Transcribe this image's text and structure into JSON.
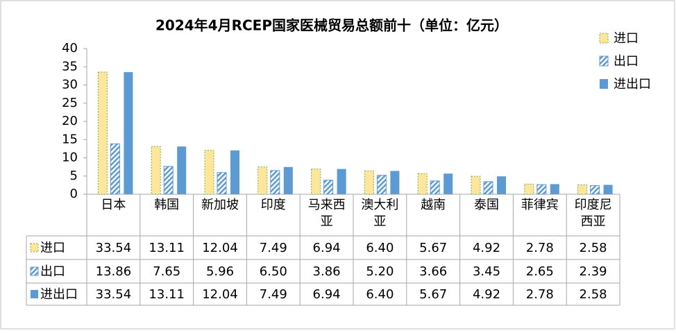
{
  "chart_data": {
    "type": "bar",
    "title": "2024年4月RCEP国家医械贸易总额前十（单位：亿元）",
    "categories": [
      "日本",
      "韩国",
      "新加坡",
      "印度",
      "马来西亚",
      "澳大利亚",
      "越南",
      "泰国",
      "菲律宾",
      "印度尼西亚"
    ],
    "series": [
      {
        "name": "进口",
        "color": "#ffe699",
        "values": [
          33.54,
          13.11,
          12.04,
          7.49,
          6.94,
          6.4,
          5.67,
          4.92,
          2.78,
          2.58
        ],
        "value_labels": [
          "33.54",
          "13.11",
          "12.04",
          "7.49",
          "6.94",
          "6.40",
          "5.67",
          "4.92",
          "2.78",
          "2.58"
        ]
      },
      {
        "name": "出口",
        "color": "#5b9bd5",
        "values": [
          13.86,
          7.65,
          5.96,
          6.5,
          3.86,
          5.2,
          3.66,
          3.45,
          2.65,
          2.39
        ],
        "value_labels": [
          "13.86",
          "7.65",
          "5.96",
          "6.50",
          "3.86",
          "5.20",
          "3.66",
          "3.45",
          "2.65",
          "2.39"
        ]
      },
      {
        "name": "进出口",
        "color": "#5b9bd5",
        "values": [
          33.54,
          13.11,
          12.04,
          7.49,
          6.94,
          6.4,
          5.67,
          4.92,
          2.78,
          2.58
        ],
        "value_labels": [
          "33.54",
          "13.11",
          "12.04",
          "7.49",
          "6.94",
          "6.40",
          "5.67",
          "4.92",
          "2.78",
          "2.58"
        ]
      }
    ],
    "ylim": [
      0,
      40
    ],
    "yticks": [
      0,
      5,
      10,
      15,
      20,
      25,
      30,
      35,
      40
    ],
    "grid": false,
    "legend": "right"
  }
}
